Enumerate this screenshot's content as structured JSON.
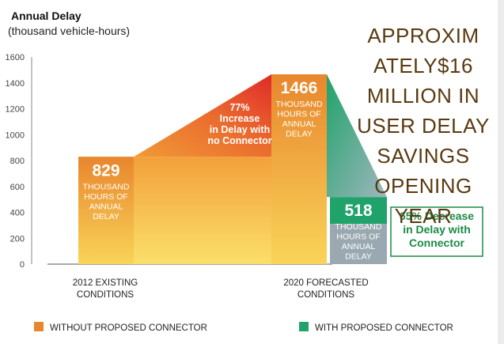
{
  "chart_data": {
    "type": "bar",
    "title": "Annual Delay",
    "subtitle": "(thousand vehicle-hours)",
    "categories": [
      "2012 EXISTING CONDITIONS",
      "2020 FORECASTED CONDITIONS"
    ],
    "category_lines": [
      [
        "2012 EXISTING",
        "CONDITIONS"
      ],
      [
        "2020 FORECASTED",
        "CONDITIONS"
      ]
    ],
    "series": [
      {
        "name": "WITHOUT PROPOSED CONNECTOR",
        "values": [
          829,
          1466
        ],
        "color": "#e8862e"
      },
      {
        "name": "WITH PROPOSED CONNECTOR",
        "values": [
          null,
          518
        ],
        "color": "#1fa36a"
      }
    ],
    "ylim": [
      0,
      1600
    ],
    "yticks": [
      0,
      200,
      400,
      600,
      800,
      1000,
      1200,
      1400,
      1600
    ],
    "grid": false,
    "legend_position": "bottom",
    "value_labels": [
      {
        "value": "829",
        "lines": [
          "THOUSAND",
          "HOURS OF",
          "ANNUAL",
          "DELAY"
        ]
      },
      {
        "value": "1466",
        "lines": [
          "THOUSAND",
          "HOURS OF",
          "ANNUAL",
          "DELAY"
        ]
      },
      {
        "value": "518",
        "lines": [
          "THOUSAND",
          "HOURS OF",
          "ANNUAL",
          "DELAY"
        ]
      }
    ],
    "annotations": {
      "increase": [
        "77%",
        "Increase",
        "in Delay with",
        "no Connector"
      ],
      "decrease": [
        "65% Decrease",
        "in Delay with",
        "Connector"
      ]
    }
  },
  "headline_lines": [
    "APPROXIM",
    "ATELY$16",
    "MILLION IN",
    "USER DELAY",
    "SAVINGS",
    "OPENING",
    "YEAR"
  ],
  "colors": {
    "orange": "#e8862e",
    "orange_light": "#f7c64a",
    "red": "#e2302a",
    "green": "#1fa36a",
    "gray_blue": "#9aa9b1",
    "headline": "#5a3a10"
  }
}
